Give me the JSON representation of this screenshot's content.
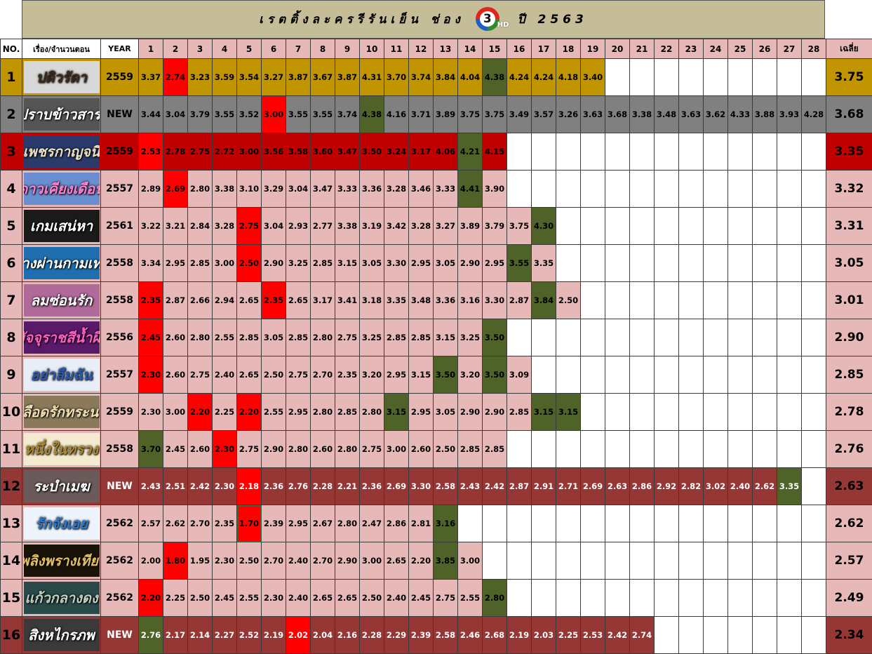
{
  "title": {
    "left": "เรตติ้งละครรีรันเย็น ช่อง",
    "logo_number": "3",
    "logo_hd": "HD",
    "right": "ปี 2563"
  },
  "headers": {
    "no": "NO.",
    "name": "เรื่อง/จำนวนตอน",
    "year": "YEAR",
    "episodes": [
      "1",
      "2",
      "3",
      "4",
      "5",
      "6",
      "7",
      "8",
      "9",
      "10",
      "11",
      "12",
      "13",
      "14",
      "15",
      "16",
      "17",
      "18",
      "19",
      "20",
      "21",
      "22",
      "23",
      "24",
      "25",
      "26",
      "27",
      "28"
    ],
    "avg": "เฉลี่ย"
  },
  "colors": {
    "gold": "#c09500",
    "gray": "#808080",
    "darkred": "#c00000",
    "pink": "#e6b9b8",
    "maroon": "#953735",
    "highlight_red": "#ff0000",
    "highlight_green": "#4f6228",
    "highlight_text": "#ffff00"
  },
  "rows": [
    {
      "rank": "1",
      "title": "ปดิวรัดา",
      "year": "2559",
      "avg": "3.75",
      "theme": "gold",
      "logo_bg": "#d8d8d8",
      "logo_fg": "#3a2a1a",
      "values": [
        "3.37",
        "2.74",
        "3.23",
        "3.59",
        "3.54",
        "3.27",
        "3.87",
        "3.67",
        "3.87",
        "4.31",
        "3.70",
        "3.74",
        "3.84",
        "4.04",
        "4.38",
        "4.24",
        "4.24",
        "4.18",
        "3.40"
      ],
      "red": [
        2
      ],
      "green": [
        15
      ]
    },
    {
      "rank": "2",
      "title": "มือปราบข้าวสารเสก",
      "year": "NEW",
      "avg": "3.68",
      "theme": "gray",
      "logo_bg": "#555555",
      "logo_fg": "#ffffff",
      "values": [
        "3.44",
        "3.04",
        "3.79",
        "3.55",
        "3.52",
        "3.00",
        "3.55",
        "3.55",
        "3.74",
        "4.38",
        "4.16",
        "3.71",
        "3.89",
        "3.75",
        "3.75",
        "3.49",
        "3.57",
        "3.26",
        "3.63",
        "3.68",
        "3.38",
        "3.48",
        "3.63",
        "3.62",
        "4.33",
        "3.88",
        "3.93",
        "4.28"
      ],
      "red": [
        6
      ],
      "green": [
        10
      ]
    },
    {
      "rank": "3",
      "title": "เพชรกาญจนี",
      "year": "2559",
      "avg": "3.35",
      "theme": "darkred",
      "logo_bg": "#2a3b6b",
      "logo_fg": "#e8e0c0",
      "values": [
        "2.53",
        "2.78",
        "2.75",
        "2.72",
        "3.00",
        "3.56",
        "3.58",
        "3.60",
        "3.47",
        "3.50",
        "3.24",
        "3.17",
        "4.06",
        "4.21",
        "4.15"
      ],
      "red": [
        1
      ],
      "green": [
        14
      ]
    },
    {
      "rank": "4",
      "title": "ดาวเคียงเดือน",
      "year": "2557",
      "avg": "3.32",
      "theme": "pink",
      "logo_bg": "#6a8fd0",
      "logo_fg": "#ff7fd0",
      "values": [
        "2.89",
        "2.69",
        "2.80",
        "3.38",
        "3.10",
        "3.29",
        "3.04",
        "3.47",
        "3.33",
        "3.36",
        "3.28",
        "3.46",
        "3.33",
        "4.41",
        "3.90"
      ],
      "red": [
        2
      ],
      "green": [
        14
      ]
    },
    {
      "rank": "5",
      "title": "เกมเสน่หา",
      "year": "2561",
      "avg": "3.31",
      "theme": "pink",
      "logo_bg": "#1a1a1a",
      "logo_fg": "#ffffff",
      "values": [
        "3.22",
        "3.21",
        "2.84",
        "3.28",
        "2.75",
        "3.04",
        "2.93",
        "2.77",
        "3.38",
        "3.19",
        "3.42",
        "3.28",
        "3.27",
        "3.89",
        "3.79",
        "3.75",
        "4.30"
      ],
      "red": [
        5
      ],
      "green": [
        17
      ]
    },
    {
      "rank": "6",
      "title": "ทางผ่านกามเทพ",
      "year": "2558",
      "avg": "3.05",
      "theme": "pink",
      "logo_bg": "#1f6fb0",
      "logo_fg": "#ffffff",
      "values": [
        "3.34",
        "2.95",
        "2.85",
        "3.00",
        "2.50",
        "2.90",
        "3.25",
        "2.85",
        "3.15",
        "3.05",
        "3.30",
        "2.95",
        "3.05",
        "2.90",
        "2.95",
        "3.55",
        "3.35"
      ],
      "red": [
        5
      ],
      "green": [
        16
      ]
    },
    {
      "rank": "7",
      "title": "ลมซ่อนรัก",
      "year": "2558",
      "avg": "3.01",
      "theme": "pink",
      "logo_bg": "#b06a9a",
      "logo_fg": "#ffffff",
      "values": [
        "2.35",
        "2.87",
        "2.66",
        "2.94",
        "2.65",
        "2.35",
        "2.65",
        "3.17",
        "3.41",
        "3.18",
        "3.35",
        "3.48",
        "3.36",
        "3.16",
        "3.30",
        "2.87",
        "3.84",
        "2.50"
      ],
      "red": [
        1,
        6
      ],
      "green": [
        17
      ]
    },
    {
      "rank": "8",
      "title": "มัจจุราชสีน้ำผึ้ง",
      "year": "2556",
      "avg": "2.90",
      "theme": "pink",
      "logo_bg": "#5a1a6a",
      "logo_fg": "#ff5fc0",
      "values": [
        "2.45",
        "2.60",
        "2.80",
        "2.55",
        "2.85",
        "3.05",
        "2.85",
        "2.80",
        "2.75",
        "3.25",
        "2.85",
        "2.85",
        "3.15",
        "3.25",
        "3.50"
      ],
      "red": [
        1
      ],
      "green": [
        15
      ]
    },
    {
      "rank": "9",
      "title": "อย่าลืมฉัน",
      "year": "2557",
      "avg": "2.85",
      "theme": "pink",
      "logo_bg": "#e8eef8",
      "logo_fg": "#2a5ab0",
      "values": [
        "2.30",
        "2.60",
        "2.75",
        "2.40",
        "2.65",
        "2.50",
        "2.75",
        "2.70",
        "2.35",
        "3.20",
        "2.95",
        "3.15",
        "3.50",
        "3.20",
        "3.50",
        "3.09"
      ],
      "red": [
        1
      ],
      "green": [
        13,
        15
      ]
    },
    {
      "rank": "10",
      "title": "เลือดรักทระนง",
      "year": "2559",
      "avg": "2.78",
      "theme": "pink",
      "logo_bg": "#8a7a5a",
      "logo_fg": "#f0e0b0",
      "values": [
        "2.30",
        "3.00",
        "2.20",
        "2.25",
        "2.20",
        "2.55",
        "2.95",
        "2.80",
        "2.85",
        "2.80",
        "3.15",
        "2.95",
        "3.05",
        "2.90",
        "2.90",
        "2.85",
        "3.15",
        "3.15"
      ],
      "red": [
        3,
        5
      ],
      "green": [
        11,
        17,
        18
      ]
    },
    {
      "rank": "11",
      "title": "หนึ่งในทรวง",
      "year": "2558",
      "avg": "2.76",
      "theme": "pink",
      "logo_bg": "#f4ead0",
      "logo_fg": "#b08a30",
      "values": [
        "3.70",
        "2.45",
        "2.60",
        "2.30",
        "2.75",
        "2.90",
        "2.80",
        "2.60",
        "2.80",
        "2.75",
        "3.00",
        "2.60",
        "2.50",
        "2.85",
        "2.85"
      ],
      "red": [
        4
      ],
      "green": [
        1
      ]
    },
    {
      "rank": "12",
      "title": "ระบำเมฆ",
      "year": "NEW",
      "avg": "2.63",
      "theme": "maroon",
      "logo_bg": "#6a5a5a",
      "logo_fg": "#ffffff",
      "values": [
        "2.43",
        "2.51",
        "2.42",
        "2.30",
        "2.18",
        "2.36",
        "2.76",
        "2.28",
        "2.21",
        "2.36",
        "2.69",
        "3.30",
        "2.58",
        "2.43",
        "2.42",
        "2.87",
        "2.91",
        "2.71",
        "2.69",
        "2.63",
        "2.86",
        "2.92",
        "2.82",
        "3.02",
        "2.40",
        "2.62",
        "3.35"
      ],
      "red": [
        5
      ],
      "green": [
        27
      ]
    },
    {
      "rank": "13",
      "title": "รักจังเอย",
      "year": "2562",
      "avg": "2.62",
      "theme": "pink",
      "logo_bg": "#eef4fb",
      "logo_fg": "#2a7ad0",
      "values": [
        "2.57",
        "2.62",
        "2.70",
        "2.35",
        "1.70",
        "2.39",
        "2.95",
        "2.67",
        "2.80",
        "2.47",
        "2.86",
        "2.81",
        "3.16"
      ],
      "red": [
        5
      ],
      "green": [
        13
      ]
    },
    {
      "rank": "14",
      "title": "เพลิงพรางเทียน",
      "year": "2562",
      "avg": "2.57",
      "theme": "pink",
      "logo_bg": "#1a1408",
      "logo_fg": "#e0c060",
      "values": [
        "2.00",
        "1.80",
        "1.95",
        "2.30",
        "2.50",
        "2.70",
        "2.40",
        "2.70",
        "2.90",
        "3.00",
        "2.65",
        "2.20",
        "3.85",
        "3.00"
      ],
      "red": [
        2
      ],
      "green": [
        13
      ]
    },
    {
      "rank": "15",
      "title": "แก้วกลางดง",
      "year": "2562",
      "avg": "2.49",
      "theme": "pink",
      "logo_bg": "#2a4a4a",
      "logo_fg": "#c0d0c0",
      "values": [
        "2.20",
        "2.25",
        "2.50",
        "2.45",
        "2.55",
        "2.30",
        "2.40",
        "2.65",
        "2.65",
        "2.50",
        "2.40",
        "2.45",
        "2.75",
        "2.55",
        "2.80"
      ],
      "red": [
        1
      ],
      "green": [
        15
      ]
    },
    {
      "rank": "16",
      "title": "สิงหไกรภพ",
      "year": "NEW",
      "avg": "2.34",
      "theme": "maroon",
      "logo_bg": "#3a3a3a",
      "logo_fg": "#ffffff",
      "values": [
        "2.76",
        "2.17",
        "2.14",
        "2.27",
        "2.52",
        "2.19",
        "2.02",
        "2.04",
        "2.16",
        "2.28",
        "2.29",
        "2.39",
        "2.58",
        "2.46",
        "2.68",
        "2.19",
        "2.03",
        "2.25",
        "2.53",
        "2.42",
        "2.74"
      ],
      "red": [
        7
      ],
      "green": [
        1
      ]
    }
  ]
}
